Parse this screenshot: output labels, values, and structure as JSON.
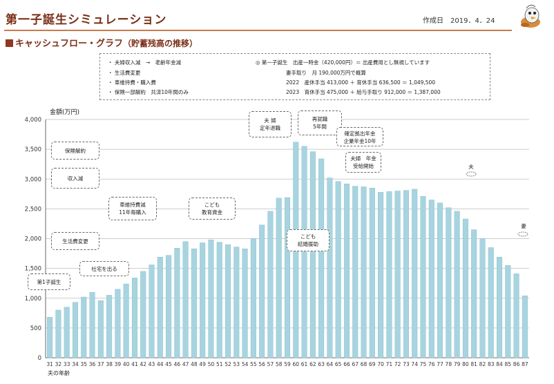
{
  "header": {
    "title": "第一子誕生シミュレーション",
    "created": "作成日　2019．4．24"
  },
  "section": {
    "title": "キャッシュフロー・グラフ",
    "subtitle": "（貯蓄残高の推移）"
  },
  "notes": {
    "left": [
      "・ 夫婦収入減　→　老齢年金減",
      "・ 生活費変更",
      "・ 車維持費・購入費",
      "・ 保険一部解約　共済10年間のみ"
    ],
    "right": [
      "◎ 第一子誕生　出産一時金（420,000円）＝ 出産費用とし無視しています",
      "妻手取り　月 190,000万円で概算",
      "2022　産休手当 413,000 ＋ 育休手当 636,500 ＝ 1,049,500",
      "2023　育休手当 475,000 ＋ 給与手取り 912,000 ＝ 1,387,000"
    ]
  },
  "colors": {
    "bar": "#a8d4df",
    "bar_edge": "#7fbccd",
    "grid": "#bdbdbd",
    "title": "#7a2e16"
  },
  "chart_data": {
    "type": "bar",
    "title": "キャッシュフロー・グラフ（貯蓄残高の推移）",
    "ylabel": "金額(万円)",
    "xlabel": "夫の年齢",
    "ylim": [
      0,
      4000
    ],
    "yticks": [
      "0",
      "500",
      "1,000",
      "1,500",
      "2,000",
      "2,500",
      "3,000",
      "3,500",
      "4,000"
    ],
    "ytick_values": [
      0,
      500,
      1000,
      1500,
      2000,
      2500,
      3000,
      3500,
      4000
    ],
    "categories": [
      "31",
      "32",
      "33",
      "34",
      "35",
      "36",
      "37",
      "38",
      "39",
      "40",
      "41",
      "42",
      "43",
      "44",
      "45",
      "46",
      "47",
      "48",
      "49",
      "50",
      "51",
      "52",
      "53",
      "54",
      "55",
      "56",
      "57",
      "58",
      "59",
      "60",
      "61",
      "62",
      "63",
      "64",
      "65",
      "66",
      "67",
      "68",
      "69",
      "70",
      "71",
      "72",
      "73",
      "74",
      "75",
      "76",
      "77",
      "78",
      "79",
      "80",
      "81",
      "82",
      "83",
      "84",
      "85",
      "86",
      "87"
    ],
    "values": [
      680,
      800,
      850,
      930,
      1020,
      1100,
      960,
      1050,
      1150,
      1240,
      1340,
      1450,
      1560,
      1690,
      1720,
      1840,
      1950,
      1830,
      1930,
      1980,
      1940,
      1900,
      1860,
      1830,
      2000,
      2230,
      2460,
      2680,
      2690,
      3620,
      3550,
      3460,
      3340,
      3020,
      2960,
      2920,
      2880,
      2870,
      2850,
      2780,
      2790,
      2800,
      2810,
      2830,
      2710,
      2650,
      2600,
      2520,
      2460,
      2330,
      2150,
      2000,
      1850,
      1690,
      1550,
      1410,
      1040
    ],
    "annotations": [
      "第1子誕生",
      "社宅を出る",
      "生活費変更",
      "収入減",
      "保険解約",
      "車維持費減\n11年毎購入",
      "こども\n教育資金",
      "夫 婦\n定年退職",
      "再就職\n5年間",
      "こども\n結婚援助",
      "確定拠出年金\n企業年金10年",
      "夫婦　年金\n受給開始",
      "夫",
      "妻"
    ]
  }
}
